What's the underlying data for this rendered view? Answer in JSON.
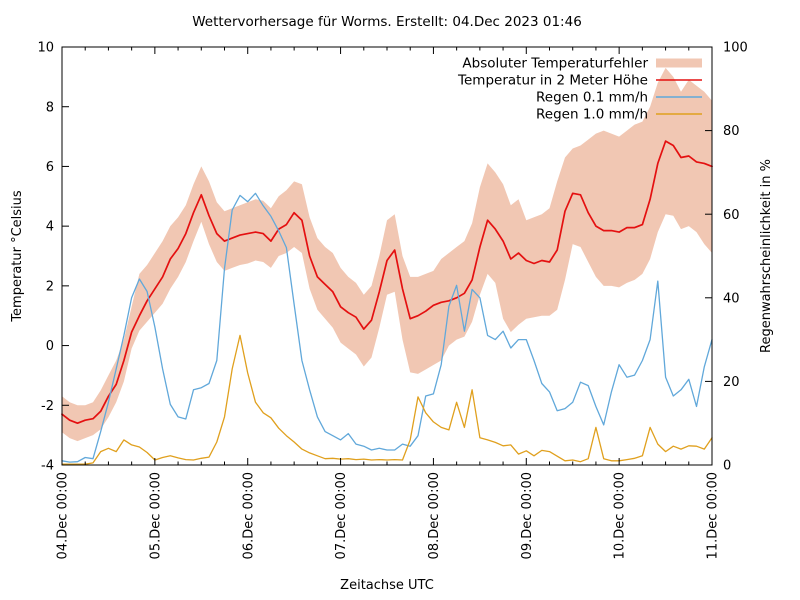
{
  "title": "Wettervorhersage für Worms. Erstellt: 04.Dec 2023 01:46",
  "axes": {
    "x_label": "Zeitachse UTC",
    "y_left_label": "Temperatur °Celsius",
    "y_right_label": "Regenwahrscheinlichkeit in %",
    "y_left_ticks": [
      10,
      8,
      6,
      4,
      2,
      0,
      -2,
      -4
    ],
    "y_right_ticks": [
      100,
      80,
      60,
      40,
      20,
      0
    ],
    "x_tick_labels": [
      "04.Dec 00:00",
      "05.Dec 00:00",
      "06.Dec 00:00",
      "07.Dec 00:00",
      "08.Dec 00:00",
      "09.Dec 00:00",
      "10.Dec 00:00",
      "11.Dec 00:00"
    ]
  },
  "chart_data": {
    "type": "line",
    "title": "Wettervorhersage für Worms. Erstellt: 04.Dec 2023 01:46",
    "xlabel": "Zeitachse UTC",
    "ylabel_left": "Temperatur °Celsius",
    "ylabel_right": "Regenwahrscheinlichkeit in %",
    "ylim_left": [
      -4,
      10
    ],
    "ylim_right": [
      0,
      100
    ],
    "grid": false,
    "legend_position": "top-right-inside",
    "x_unit": "hours since 04.Dec 2023 00:00 UTC",
    "x_step_hours": 2,
    "x_range_hours": [
      0,
      168
    ],
    "x_major_tick_every_hours": 24,
    "x_minor_tick_every_hours": 6,
    "series": [
      {
        "name": "Absoluter Temperaturfehler",
        "type": "band",
        "axis": "left",
        "color": "#f1c7b3",
        "upper": [
          -1.7,
          -1.9,
          -2.0,
          -2.0,
          -1.9,
          -1.5,
          -1.0,
          -0.5,
          0.2,
          1.3,
          2.4,
          2.7,
          3.1,
          3.5,
          4.0,
          4.3,
          4.7,
          5.4,
          6.0,
          5.5,
          4.8,
          4.5,
          4.6,
          4.7,
          4.8,
          4.9,
          4.85,
          4.6,
          5.0,
          5.2,
          5.5,
          5.4,
          4.3,
          3.6,
          3.3,
          3.1,
          2.6,
          2.3,
          2.1,
          1.7,
          2.0,
          3.0,
          4.2,
          4.4,
          3.0,
          2.3,
          2.3,
          2.4,
          2.5,
          2.9,
          3.1,
          3.3,
          3.5,
          4.1,
          5.3,
          6.1,
          5.8,
          5.4,
          4.7,
          4.9,
          4.2,
          4.3,
          4.4,
          4.6,
          5.5,
          6.3,
          6.6,
          6.7,
          6.9,
          7.1,
          7.2,
          7.1,
          7.0,
          7.2,
          7.4,
          7.5,
          8.0,
          8.8,
          9.3,
          9.0,
          8.5,
          8.9,
          8.7,
          8.5,
          8.2
        ],
        "lower": [
          -2.9,
          -3.1,
          -3.2,
          -3.1,
          -3.0,
          -2.8,
          -2.4,
          -1.9,
          -1.2,
          -0.1,
          0.5,
          0.8,
          1.1,
          1.4,
          1.9,
          2.3,
          2.8,
          3.5,
          4.15,
          3.4,
          2.8,
          2.5,
          2.6,
          2.7,
          2.75,
          2.85,
          2.8,
          2.6,
          3.0,
          3.1,
          3.3,
          3.1,
          1.9,
          1.2,
          0.9,
          0.6,
          0.1,
          -0.1,
          -0.3,
          -0.7,
          -0.4,
          0.6,
          1.7,
          1.8,
          0.2,
          -0.9,
          -0.95,
          -0.8,
          -0.65,
          -0.5,
          0.0,
          0.2,
          0.3,
          0.8,
          1.7,
          2.4,
          2.1,
          0.9,
          0.45,
          0.7,
          0.9,
          0.95,
          1.0,
          1.0,
          1.2,
          2.2,
          3.4,
          3.3,
          2.8,
          2.3,
          2.0,
          2.0,
          1.95,
          2.1,
          2.2,
          2.4,
          2.9,
          3.8,
          4.4,
          4.35,
          3.9,
          4.0,
          3.8,
          3.4,
          3.1
        ]
      },
      {
        "name": "Temperatur in 2 Meter Höhe",
        "type": "line",
        "axis": "left",
        "color": "#e41010",
        "values": [
          -2.3,
          -2.5,
          -2.6,
          -2.5,
          -2.45,
          -2.2,
          -1.7,
          -1.3,
          -0.5,
          0.45,
          1.0,
          1.5,
          1.9,
          2.3,
          2.9,
          3.25,
          3.75,
          4.45,
          5.05,
          4.35,
          3.75,
          3.5,
          3.6,
          3.7,
          3.75,
          3.8,
          3.75,
          3.5,
          3.9,
          4.05,
          4.45,
          4.2,
          3.0,
          2.3,
          2.05,
          1.8,
          1.3,
          1.1,
          0.95,
          0.55,
          0.85,
          1.8,
          2.85,
          3.2,
          1.9,
          0.9,
          1.0,
          1.15,
          1.35,
          1.45,
          1.5,
          1.6,
          1.75,
          2.2,
          3.3,
          4.2,
          3.9,
          3.5,
          2.9,
          3.1,
          2.85,
          2.75,
          2.85,
          2.8,
          3.2,
          4.5,
          5.1,
          5.05,
          4.45,
          4.0,
          3.85,
          3.85,
          3.8,
          3.95,
          3.95,
          4.05,
          4.9,
          6.1,
          6.85,
          6.7,
          6.3,
          6.35,
          6.15,
          6.1,
          6.0
        ]
      },
      {
        "name": "Regen 0.1 mm/h",
        "type": "line",
        "axis": "right",
        "color": "#61a8da",
        "values": [
          1,
          0.7,
          0.8,
          1.8,
          1.5,
          8,
          15,
          23,
          31,
          40,
          44.5,
          41.5,
          33,
          23,
          14.5,
          11.5,
          11,
          18,
          18.5,
          19.5,
          25,
          47,
          61,
          64.5,
          63,
          65,
          62,
          59.5,
          56,
          52,
          38.5,
          25,
          18,
          11.5,
          8,
          7,
          6,
          7.5,
          5,
          4.5,
          3.6,
          4,
          3.6,
          3.6,
          5,
          4.5,
          7,
          16.5,
          17,
          24,
          38,
          43,
          32,
          42,
          40,
          31,
          30,
          32,
          28,
          30,
          30,
          25,
          19.5,
          17.5,
          13,
          13.5,
          15,
          19.8,
          19,
          14,
          9.6,
          17.5,
          24,
          21,
          21.5,
          25,
          30,
          44,
          21,
          16.5,
          18,
          20.5,
          14,
          23.5,
          30
        ]
      },
      {
        "name": "Regen 1.0 mm/h",
        "type": "line",
        "axis": "right",
        "color": "#e0a01e",
        "values": [
          0.2,
          0.2,
          0.2,
          0.2,
          0.5,
          3.2,
          4,
          3.2,
          6,
          4.8,
          4.3,
          3,
          1.2,
          1.8,
          2.2,
          1.7,
          1.3,
          1.2,
          1.6,
          1.9,
          5.5,
          11.5,
          23,
          31,
          22,
          15,
          12.5,
          11.3,
          8.8,
          7,
          5.5,
          3.8,
          2.9,
          2.2,
          1.5,
          1.6,
          1.4,
          1.5,
          1.3,
          1.4,
          1.2,
          1.3,
          1.2,
          1.3,
          1.2,
          6,
          16.3,
          12.5,
          10.3,
          9,
          8.4,
          15,
          9,
          18,
          6.5,
          6,
          5.4,
          4.6,
          4.8,
          2.6,
          3.4,
          2.2,
          3.5,
          3.2,
          2.1,
          1,
          1.2,
          0.8,
          1.5,
          9,
          1.5,
          1,
          1,
          1.3,
          1.6,
          2.2,
          9,
          5,
          3.2,
          4.5,
          3.8,
          4.6,
          4.5,
          3.8,
          6.5
        ]
      }
    ]
  }
}
